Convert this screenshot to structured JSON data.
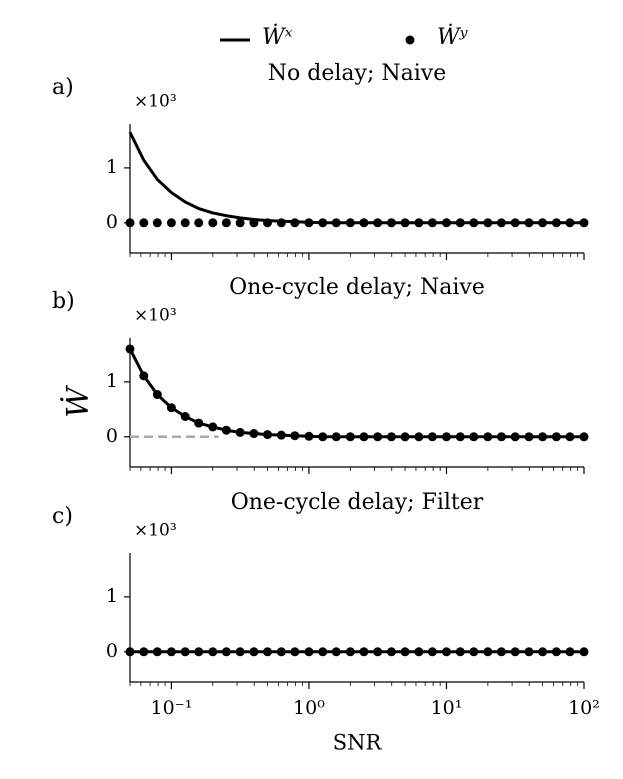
{
  "chart_data": [
    {
      "type": "line",
      "panel_label": "a)",
      "title": "No delay; Naive",
      "offset_label": "×10³",
      "x": [
        0.05,
        0.063,
        0.079,
        0.1,
        0.126,
        0.158,
        0.2,
        0.251,
        0.316,
        0.398,
        0.5,
        0.63,
        0.79,
        1,
        1.26,
        1.58,
        2,
        2.51,
        3.16,
        3.98,
        5,
        6.3,
        7.9,
        10,
        12.6,
        15.8,
        20,
        25.1,
        31.6,
        39.8,
        50,
        63,
        79,
        100
      ],
      "xscale": "log",
      "xlim": [
        0.05,
        100
      ],
      "ylim": [
        -0.55,
        1.8
      ],
      "yticks": [
        0,
        1
      ],
      "series": [
        {
          "name": "Ẇˣ",
          "color": "#000000",
          "style": "line",
          "values": [
            1.65,
            1.14,
            0.79,
            0.55,
            0.38,
            0.26,
            0.18,
            0.13,
            0.09,
            0.06,
            0.04,
            0.03,
            0.02,
            0.01,
            0,
            0,
            0,
            0,
            0,
            0,
            0,
            0,
            0,
            0,
            0,
            0,
            0,
            0,
            0,
            0,
            0,
            0,
            0,
            0
          ]
        },
        {
          "name": "Ẇʸ",
          "color": "#000000",
          "style": "dots",
          "values": [
            0,
            0,
            0,
            0,
            0,
            0,
            0,
            0,
            0,
            0,
            0,
            0,
            0,
            0,
            0,
            0,
            0,
            0,
            0,
            0,
            0,
            0,
            0,
            0,
            0,
            0,
            0,
            0,
            0,
            0,
            0,
            0,
            0,
            0
          ]
        }
      ]
    },
    {
      "type": "line",
      "panel_label": "b)",
      "title": "One-cycle delay; Naive",
      "offset_label": "×10³",
      "ylabel": "Ẇ",
      "x": [
        0.05,
        0.063,
        0.079,
        0.1,
        0.126,
        0.158,
        0.2,
        0.251,
        0.316,
        0.398,
        0.5,
        0.63,
        0.79,
        1,
        1.26,
        1.58,
        2,
        2.51,
        3.16,
        3.98,
        5,
        6.3,
        7.9,
        10,
        12.6,
        15.8,
        20,
        25.1,
        31.6,
        39.8,
        50,
        63,
        79,
        100
      ],
      "xscale": "log",
      "xlim": [
        0.05,
        100
      ],
      "ylim": [
        -0.55,
        1.8
      ],
      "yticks": [
        0,
        1
      ],
      "hlines": [
        {
          "y": 0,
          "xmax": 0.22,
          "color": "#aaaaaa",
          "dash": true
        }
      ],
      "series": [
        {
          "name": "Ẇˣ",
          "color": "#000000",
          "style": "line",
          "values": [
            1.6,
            1.11,
            0.77,
            0.53,
            0.37,
            0.25,
            0.18,
            0.12,
            0.08,
            0.06,
            0.04,
            0.03,
            0.02,
            0.01,
            0,
            0,
            0,
            0,
            0,
            0,
            0,
            0,
            0,
            0,
            0,
            0,
            0,
            0,
            0,
            0,
            0,
            0,
            0,
            0
          ]
        },
        {
          "name": "Ẇʸ",
          "color": "#000000",
          "style": "dots",
          "values": [
            1.6,
            1.11,
            0.77,
            0.53,
            0.37,
            0.25,
            0.18,
            0.12,
            0.08,
            0.06,
            0.04,
            0.03,
            0.02,
            0.01,
            0,
            0,
            0,
            0,
            0,
            0,
            0,
            0,
            0,
            0,
            0,
            0,
            0,
            0,
            0,
            0,
            0,
            0,
            0,
            0
          ]
        }
      ]
    },
    {
      "type": "line",
      "panel_label": "c)",
      "title": "One-cycle delay; Filter",
      "offset_label": "×10³",
      "xlabel": "SNR",
      "x": [
        0.05,
        0.063,
        0.079,
        0.1,
        0.126,
        0.158,
        0.2,
        0.251,
        0.316,
        0.398,
        0.5,
        0.63,
        0.79,
        1,
        1.26,
        1.58,
        2,
        2.51,
        3.16,
        3.98,
        5,
        6.3,
        7.9,
        10,
        12.6,
        15.8,
        20,
        25.1,
        31.6,
        39.8,
        50,
        63,
        79,
        100
      ],
      "xscale": "log",
      "xlim": [
        0.05,
        100
      ],
      "ylim": [
        -0.55,
        1.8
      ],
      "yticks": [
        0,
        1
      ],
      "xticks": [
        {
          "value": 0.1,
          "label": "10⁻¹"
        },
        {
          "value": 1,
          "label": "10⁰"
        },
        {
          "value": 10,
          "label": "10¹"
        },
        {
          "value": 100,
          "label": "10²"
        }
      ],
      "series": [
        {
          "name": "Ẇˣ",
          "color": "#000000",
          "style": "line",
          "values": [
            0,
            0,
            0,
            0,
            0,
            0,
            0,
            0,
            0,
            0,
            0,
            0,
            0,
            0,
            0,
            0,
            0,
            0,
            0,
            0,
            0,
            0,
            0,
            0,
            0,
            0,
            0,
            0,
            0,
            0,
            0,
            0,
            0,
            0
          ]
        },
        {
          "name": "Ẇʸ",
          "color": "#000000",
          "style": "dots",
          "values": [
            0,
            0,
            0,
            0,
            0,
            0,
            0,
            0,
            0,
            0,
            0,
            0,
            0,
            0,
            0,
            0,
            0,
            0,
            0,
            0,
            0,
            0,
            0,
            0,
            0,
            0,
            0,
            0,
            0,
            0,
            0,
            0,
            0,
            0
          ]
        }
      ]
    }
  ]
}
